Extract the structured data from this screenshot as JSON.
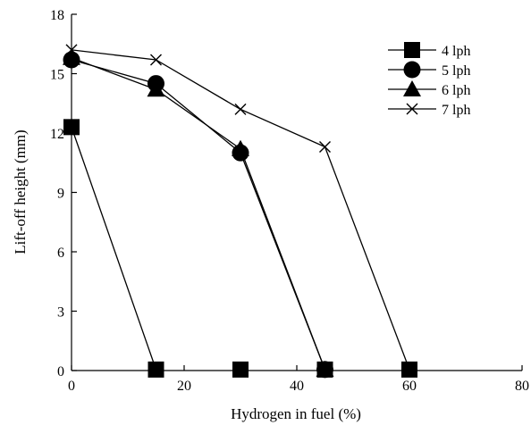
{
  "chart_data": {
    "type": "line",
    "xlabel": "Hydrogen in fuel (%)",
    "ylabel": "Lift-off height (mm)",
    "xlim": [
      0,
      80
    ],
    "ylim": [
      0,
      18
    ],
    "xticks": [
      0,
      20,
      40,
      60,
      80
    ],
    "yticks": [
      0,
      3,
      6,
      9,
      12,
      15,
      18
    ],
    "grid": false,
    "legend_position": "top-right",
    "series": [
      {
        "name": "4 lph",
        "marker": "square",
        "x": [
          0,
          15,
          30,
          45,
          60
        ],
        "y": [
          12.3,
          0.05,
          0.05,
          0.05,
          0.05
        ],
        "line_x": [
          0,
          15
        ]
      },
      {
        "name": "5 lph",
        "marker": "circle",
        "x": [
          0,
          15,
          30,
          45
        ],
        "y": [
          15.7,
          14.5,
          11.0,
          0.05
        ]
      },
      {
        "name": "6 lph",
        "marker": "triangle",
        "x": [
          0,
          15,
          30,
          45
        ],
        "y": [
          15.8,
          14.2,
          11.2,
          0.05
        ]
      },
      {
        "name": "7 lph",
        "marker": "x",
        "x": [
          0,
          15,
          30,
          45,
          60
        ],
        "y": [
          16.2,
          15.7,
          13.2,
          11.3,
          0.05
        ]
      }
    ]
  }
}
